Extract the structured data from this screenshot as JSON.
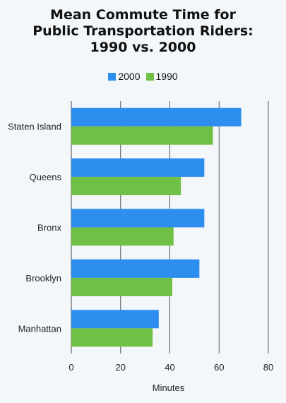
{
  "chart_data": {
    "type": "bar",
    "orientation": "horizontal",
    "title_lines": [
      "Mean Commute Time for",
      "Public Transportation Riders:",
      "1990 vs. 2000"
    ],
    "categories": [
      "Staten Island",
      "Queens",
      "Bronx",
      "Brooklyn",
      "Manhattan"
    ],
    "series": [
      {
        "name": "2000",
        "color": "#2e8ef0",
        "values": [
          69,
          54,
          54,
          52,
          35.5
        ]
      },
      {
        "name": "1990",
        "color": "#70c045",
        "values": [
          57.5,
          44.5,
          41.5,
          41,
          33
        ]
      }
    ],
    "xlabel": "Minutes",
    "xlim": [
      0,
      80
    ],
    "xticks": [
      "0",
      "20",
      "40",
      "60",
      "80"
    ],
    "grid": true,
    "legend_position": "top"
  }
}
